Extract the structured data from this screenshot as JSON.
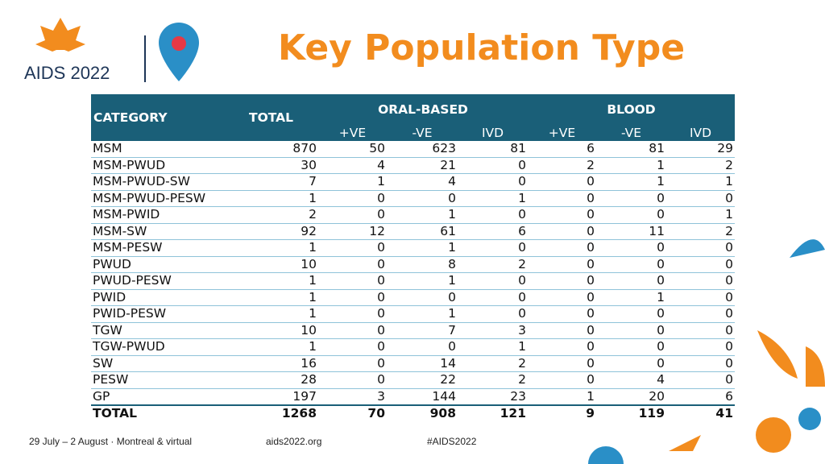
{
  "header": {
    "logo_text": "AIDS 2022",
    "title": "Key Population Type"
  },
  "table": {
    "columns": [
      "CATEGORY",
      "TOTAL"
    ],
    "groups": [
      "ORAL-BASED",
      "BLOOD"
    ],
    "subcolumns": [
      "+VE",
      "-VE",
      "IVD",
      "+VE",
      "-VE",
      "IVD"
    ],
    "rows": [
      [
        "MSM",
        870,
        50,
        623,
        81,
        6,
        81,
        29
      ],
      [
        "MSM-PWUD",
        30,
        4,
        21,
        0,
        2,
        1,
        2
      ],
      [
        "MSM-PWUD-SW",
        7,
        1,
        4,
        0,
        0,
        1,
        1
      ],
      [
        "MSM-PWUD-PESW",
        1,
        0,
        0,
        1,
        0,
        0,
        0
      ],
      [
        "MSM-PWID",
        2,
        0,
        1,
        0,
        0,
        0,
        1
      ],
      [
        "MSM-SW",
        92,
        12,
        61,
        6,
        0,
        11,
        2
      ],
      [
        "MSM-PESW",
        1,
        0,
        1,
        0,
        0,
        0,
        0
      ],
      [
        "PWUD",
        10,
        0,
        8,
        2,
        0,
        0,
        0
      ],
      [
        "PWUD-PESW",
        1,
        0,
        1,
        0,
        0,
        0,
        0
      ],
      [
        "PWID",
        1,
        0,
        0,
        0,
        0,
        1,
        0
      ],
      [
        "PWID-PESW",
        1,
        0,
        1,
        0,
        0,
        0,
        0
      ],
      [
        "TGW",
        10,
        0,
        7,
        3,
        0,
        0,
        0
      ],
      [
        "TGW-PWUD",
        1,
        0,
        0,
        1,
        0,
        0,
        0
      ],
      [
        "SW",
        16,
        0,
        14,
        2,
        0,
        0,
        0
      ],
      [
        "PESW",
        28,
        0,
        22,
        2,
        0,
        4,
        0
      ],
      [
        "GP",
        197,
        3,
        144,
        23,
        1,
        20,
        6
      ]
    ],
    "total_row": [
      "TOTAL",
      1268,
      70,
      908,
      121,
      9,
      119,
      41
    ]
  },
  "footer": {
    "dates": "29 July – 2 August · Montreal & virtual",
    "website": "aids2022.org",
    "hashtag": "#AIDS2022"
  }
}
